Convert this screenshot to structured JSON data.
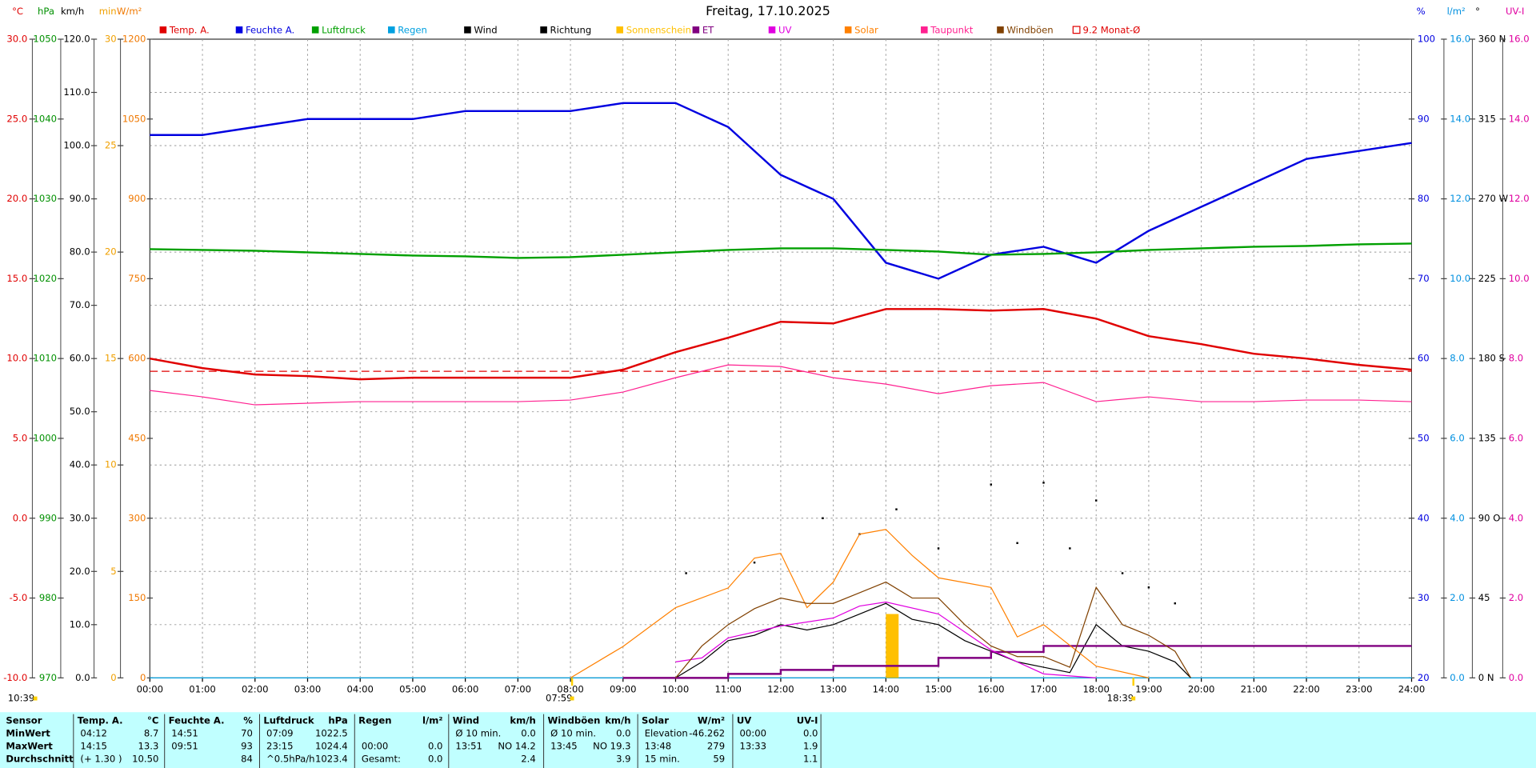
{
  "chart_data": {
    "type": "line",
    "title": "Freitag, 17.10.2025",
    "grid": true,
    "xlim": [
      0,
      24
    ],
    "xticks": [
      {
        "value": 0,
        "label": "00:00"
      },
      {
        "value": 1,
        "label": "01:00"
      },
      {
        "value": 2,
        "label": "02:00"
      },
      {
        "value": 3,
        "label": "03:00"
      },
      {
        "value": 4,
        "label": "04:00"
      },
      {
        "value": 5,
        "label": "05:00"
      },
      {
        "value": 6,
        "label": "06:00"
      },
      {
        "value": 7,
        "label": "07:00"
      },
      {
        "value": 8,
        "label": "08:00"
      },
      {
        "value": 9,
        "label": "09:00"
      },
      {
        "value": 10,
        "label": "10:00"
      },
      {
        "value": 11,
        "label": "11:00"
      },
      {
        "value": 12,
        "label": "12:00"
      },
      {
        "value": 13,
        "label": "13:00"
      },
      {
        "value": 14,
        "label": "14:00"
      },
      {
        "value": 15,
        "label": "15:00"
      },
      {
        "value": 16,
        "label": "16:00"
      },
      {
        "value": 17,
        "label": "17:00"
      },
      {
        "value": 18,
        "label": "18:00"
      },
      {
        "value": 19,
        "label": "19:00"
      },
      {
        "value": 20,
        "label": "20:00"
      },
      {
        "value": 21,
        "label": "21:00"
      },
      {
        "value": 22,
        "label": "22:00"
      },
      {
        "value": 23,
        "label": "23:00"
      },
      {
        "value": 24,
        "label": "24:00"
      }
    ],
    "axes": [
      {
        "unit": "°C",
        "side": "left",
        "color": "#e00000",
        "lim": [
          -10,
          30
        ],
        "ticks": [
          {
            "value": -10,
            "label": "-10.0"
          },
          {
            "value": -5,
            "label": "-5.0"
          },
          {
            "value": 0,
            "label": "0.0"
          },
          {
            "value": 5,
            "label": "5.0"
          },
          {
            "value": 10,
            "label": "10.0"
          },
          {
            "value": 15,
            "label": "15.0"
          },
          {
            "value": 20,
            "label": "20.0"
          },
          {
            "value": 25,
            "label": "25.0"
          },
          {
            "value": 30,
            "label": "30.0"
          }
        ]
      },
      {
        "unit": "hPa",
        "side": "left",
        "color": "#009000",
        "lim": [
          970,
          1050
        ],
        "ticks": [
          970,
          980,
          990,
          1000,
          1010,
          1020,
          1030,
          1040,
          1050
        ]
      },
      {
        "unit": "km/h",
        "side": "left",
        "color": "#000000",
        "lim": [
          0,
          120
        ],
        "ticks": [
          {
            "value": 0,
            "label": "0.0"
          },
          {
            "value": 10,
            "label": "10.0"
          },
          {
            "value": 20,
            "label": "20.0"
          },
          {
            "value": 30,
            "label": "30.0"
          },
          {
            "value": 40,
            "label": "40.0"
          },
          {
            "value": 50,
            "label": "50.0"
          },
          {
            "value": 60,
            "label": "60.0"
          },
          {
            "value": 70,
            "label": "70.0"
          },
          {
            "value": 80,
            "label": "80.0"
          },
          {
            "value": 90,
            "label": "90.0"
          },
          {
            "value": 100,
            "label": "100.0"
          },
          {
            "value": 110,
            "label": "110.0"
          },
          {
            "value": 120,
            "label": "120.0"
          }
        ]
      },
      {
        "unit": "min",
        "side": "left",
        "color": "#f0a000",
        "lim": [
          0,
          30
        ],
        "ticks": [
          0,
          5,
          10,
          15,
          20,
          25,
          30
        ]
      },
      {
        "unit": "W/m²",
        "side": "left",
        "color": "#f07800",
        "lim": [
          0,
          1200
        ],
        "ticks": [
          0,
          150,
          300,
          450,
          600,
          750,
          900,
          1050,
          1200
        ]
      },
      {
        "unit": "%",
        "side": "right",
        "color": "#0000e0",
        "lim": [
          20,
          100
        ],
        "ticks": [
          20,
          30,
          40,
          50,
          60,
          70,
          80,
          90,
          100
        ]
      },
      {
        "unit": "l/m²",
        "side": "right",
        "color": "#0090e0",
        "lim": [
          0,
          16
        ],
        "ticks": [
          {
            "value": 0,
            "label": "0.0"
          },
          {
            "value": 2,
            "label": "2.0"
          },
          {
            "value": 4,
            "label": "4.0"
          },
          {
            "value": 6,
            "label": "6.0"
          },
          {
            "value": 8,
            "label": "8.0"
          },
          {
            "value": 10,
            "label": "10.0"
          },
          {
            "value": 12,
            "label": "12.0"
          },
          {
            "value": 14,
            "label": "14.0"
          },
          {
            "value": 16,
            "label": "16.0"
          }
        ]
      },
      {
        "unit": "°",
        "side": "right",
        "color": "#000000",
        "lim": [
          0,
          360
        ],
        "ticks": [
          {
            "value": 0,
            "label": "0 N"
          },
          45,
          {
            "value": 90,
            "label": "90 O"
          },
          135,
          {
            "value": 180,
            "label": "180 S"
          },
          225,
          {
            "value": 270,
            "label": "270 W"
          },
          315,
          {
            "value": 360,
            "label": "360 N"
          }
        ]
      },
      {
        "unit": "UV-I",
        "side": "right",
        "color": "#e000a0",
        "lim": [
          0,
          16
        ],
        "ticks": [
          {
            "value": 0,
            "label": "0.0"
          },
          {
            "value": 2,
            "label": "2.0"
          },
          {
            "value": 4,
            "label": "4.0"
          },
          {
            "value": 6,
            "label": "6.0"
          },
          {
            "value": 8,
            "label": "8.0"
          },
          {
            "value": 10,
            "label": "10.0"
          },
          {
            "value": 12,
            "label": "12.0"
          },
          {
            "value": 14,
            "label": "14.0"
          },
          {
            "value": 16,
            "label": "16.0"
          }
        ]
      }
    ],
    "series": [
      {
        "name": "Temp. A.",
        "color": "#e00000",
        "axis": "°C",
        "style": "line",
        "x": [
          0,
          1,
          2,
          3,
          4,
          5,
          6,
          7,
          8,
          9,
          10,
          11,
          12,
          13,
          14,
          15,
          16,
          17,
          18,
          19,
          20,
          21,
          22,
          23,
          24
        ],
        "values": [
          10.0,
          9.4,
          9.0,
          8.9,
          8.7,
          8.8,
          8.8,
          8.8,
          8.8,
          9.3,
          10.4,
          11.3,
          12.3,
          12.2,
          13.1,
          13.1,
          13.0,
          13.1,
          12.5,
          11.4,
          10.9,
          10.3,
          10.0,
          9.6,
          9.3
        ]
      },
      {
        "name": "Feuchte A.",
        "color": "#0000e0",
        "axis": "%",
        "style": "line",
        "x": [
          0,
          1,
          2,
          3,
          4,
          5,
          6,
          7,
          8,
          9,
          10,
          11,
          12,
          13,
          14,
          15,
          16,
          17,
          18,
          19,
          20,
          21,
          22,
          23,
          24
        ],
        "values": [
          88,
          88,
          89,
          90,
          90,
          90,
          91,
          91,
          91,
          92,
          92,
          89,
          83,
          80,
          72,
          70,
          73,
          74,
          72,
          76,
          79,
          82,
          85,
          86,
          87
        ]
      },
      {
        "name": "Luftdruck",
        "color": "#00a000",
        "axis": "hPa",
        "style": "line",
        "x": [
          0,
          1,
          2,
          3,
          4,
          5,
          6,
          7,
          8,
          9,
          10,
          11,
          12,
          13,
          14,
          15,
          16,
          17,
          18,
          19,
          20,
          21,
          22,
          23,
          24
        ],
        "values": [
          1023.7,
          1023.6,
          1023.5,
          1023.3,
          1023.1,
          1022.9,
          1022.8,
          1022.6,
          1022.7,
          1023.0,
          1023.3,
          1023.6,
          1023.8,
          1023.8,
          1023.6,
          1023.4,
          1023.0,
          1023.1,
          1023.3,
          1023.6,
          1023.8,
          1024.0,
          1024.1,
          1024.3,
          1024.4
        ]
      },
      {
        "name": "Regen",
        "color": "#00a0e0",
        "axis": "l/m²",
        "style": "line",
        "x": [
          0,
          24
        ],
        "values": [
          0.0,
          0.0
        ]
      },
      {
        "name": "Wind",
        "color": "#000000",
        "axis": "km/h",
        "style": "line",
        "x": [
          10,
          10.5,
          11,
          11.5,
          12,
          12.5,
          13,
          13.5,
          14,
          14.5,
          15,
          15.5,
          16,
          16.5,
          17,
          17.5,
          18,
          18.5,
          19,
          19.5,
          19.8
        ],
        "values": [
          0,
          3,
          7,
          8,
          10,
          9,
          10,
          12,
          14,
          11,
          10,
          7,
          5,
          3,
          2,
          1,
          10,
          6,
          5,
          3,
          0
        ]
      },
      {
        "name": "Richtung",
        "color": "#000000",
        "axis": "°",
        "style": "dots",
        "x": [
          10.2,
          11.5,
          12.8,
          13.5,
          14.2,
          15.0,
          16.0,
          16.5,
          17.0,
          17.5,
          18.0,
          18.5,
          19.0,
          19.5
        ],
        "values": [
          59,
          65,
          90,
          81,
          95,
          73,
          109,
          76,
          110,
          73,
          100,
          59,
          51,
          42
        ]
      },
      {
        "name": "Sonnenschein",
        "color": "#ffc000",
        "axis": "min",
        "style": "bars",
        "x": [
          14
        ],
        "values": [
          3
        ]
      },
      {
        "name": "ET",
        "color": "#800080",
        "axis": "l/m²",
        "style": "step",
        "x": [
          9,
          11,
          12,
          13,
          15,
          16,
          17,
          24
        ],
        "values": [
          0.0,
          0.1,
          0.2,
          0.3,
          0.5,
          0.65,
          0.8,
          0.8
        ]
      },
      {
        "name": "UV",
        "color": "#e000e0",
        "axis": "UV-I",
        "style": "line",
        "x": [
          10,
          10.5,
          11,
          12,
          13,
          13.5,
          14,
          15,
          16,
          17,
          18
        ],
        "values": [
          0.4,
          0.5,
          1.0,
          1.3,
          1.5,
          1.8,
          1.9,
          1.6,
          0.7,
          0.1,
          0.0
        ]
      },
      {
        "name": "Solar",
        "color": "#ff8000",
        "axis": "W/m²",
        "style": "line",
        "x": [
          8,
          9,
          10,
          11,
          11.5,
          12,
          12.5,
          13,
          13.5,
          14,
          14.5,
          15,
          16,
          16.5,
          17,
          18,
          19
        ],
        "values": [
          0,
          59,
          132,
          169,
          225,
          234,
          132,
          180,
          270,
          279,
          230,
          188,
          170,
          77,
          100,
          22,
          0
        ]
      },
      {
        "name": "Taupunkt",
        "color": "#ff2090",
        "axis": "°C",
        "style": "line",
        "x": [
          0,
          1,
          2,
          3,
          4,
          5,
          6,
          7,
          8,
          9,
          10,
          11,
          12,
          13,
          14,
          15,
          16,
          17,
          18,
          19,
          20,
          21,
          22,
          23,
          24
        ],
        "values": [
          8.0,
          7.6,
          7.1,
          7.2,
          7.3,
          7.3,
          7.3,
          7.3,
          7.4,
          7.9,
          8.8,
          9.6,
          9.5,
          8.8,
          8.4,
          7.8,
          8.3,
          8.5,
          7.3,
          7.6,
          7.3,
          7.3,
          7.4,
          7.4,
          7.3
        ]
      },
      {
        "name": "Windböen",
        "color": "#804000",
        "axis": "km/h",
        "style": "line",
        "x": [
          10,
          10.5,
          11,
          11.5,
          12,
          12.5,
          13,
          13.5,
          14,
          14.5,
          15,
          15.5,
          16,
          16.5,
          17,
          17.5,
          18,
          18.5,
          19,
          19.5,
          19.8
        ],
        "values": [
          0,
          6,
          10,
          13,
          15,
          14,
          14,
          16,
          18,
          15,
          15,
          10,
          6,
          4,
          4,
          2,
          17,
          10,
          8,
          5,
          0
        ]
      }
    ],
    "reference_line": {
      "label": "9.2 Monat-Ø",
      "value": 9.2,
      "axis": "°C",
      "color": "#e00000"
    },
    "day_length": "10:39",
    "sunrise": "07:59",
    "sunset": "18:39"
  },
  "table": {
    "corner": "Sensor",
    "columns": [
      {
        "name": "Temp. A.",
        "unit": "°C"
      },
      {
        "name": "Feuchte A.",
        "unit": "%"
      },
      {
        "name": "Luftdruck",
        "unit": "hPa"
      },
      {
        "name": "Regen",
        "unit": "l/m²"
      },
      {
        "name": "Wind",
        "unit": "km/h"
      },
      {
        "name": "Windböen",
        "unit": "km/h"
      },
      {
        "name": "Solar",
        "unit": "W/m²"
      },
      {
        "name": "UV",
        "unit": "UV-I"
      }
    ],
    "rows": [
      {
        "label": "MinWert",
        "cells": [
          {
            "time": "04:12",
            "value": "8.7"
          },
          {
            "time": "14:51",
            "value": "70"
          },
          {
            "time": "07:09",
            "value": "1022.5"
          },
          {},
          {
            "time": "Ø 10 min.",
            "value": "0.0"
          },
          {
            "time": "Ø 10 min.",
            "value": "0.0"
          },
          {
            "time": "Elevation",
            "value": "-46.262"
          },
          {
            "time": "00:00",
            "value": "0.0"
          }
        ]
      },
      {
        "label": "MaxWert",
        "cells": [
          {
            "time": "14:15",
            "value": "13.3"
          },
          {
            "time": "09:51",
            "value": "93"
          },
          {
            "time": "23:15",
            "value": "1024.4"
          },
          {
            "time": "00:00",
            "value": "0.0"
          },
          {
            "time": "13:51",
            "value": "NO 14.2"
          },
          {
            "time": "13:45",
            "value": "NO 19.3"
          },
          {
            "time": "13:48",
            "value": "279"
          },
          {
            "time": "13:33",
            "value": "1.9"
          }
        ]
      },
      {
        "label": "Durchschnitt",
        "cells": [
          {
            "time": "(+ 1.30 )",
            "value": "10.50"
          },
          {
            "value": "84"
          },
          {
            "time": "^0.5hPa/h",
            "value": "1023.4"
          },
          {
            "time": "Gesamt:",
            "value": "0.0"
          },
          {
            "value": "2.4"
          },
          {
            "value": "3.9"
          },
          {
            "time": "15 min.",
            "value": "59"
          },
          {
            "value": "1.1"
          }
        ]
      }
    ]
  }
}
